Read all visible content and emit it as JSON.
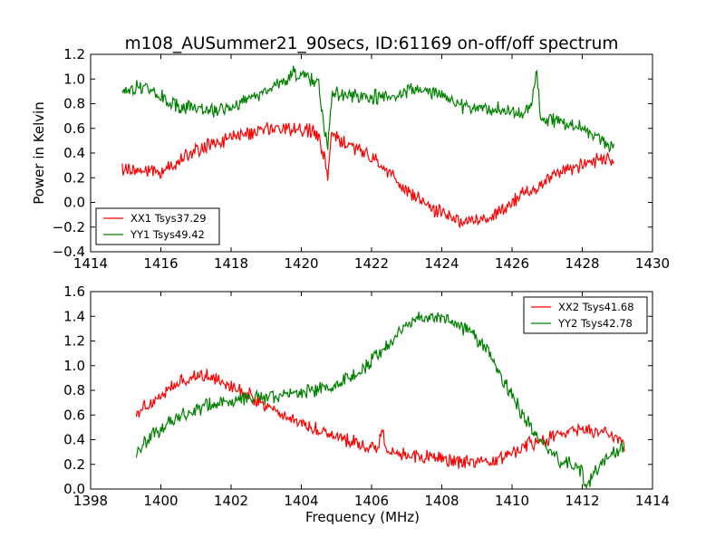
{
  "figure_title": "m108_AUSummer21_90secs, ID:61169 on-off/off spectrum",
  "chart_data": [
    {
      "type": "line",
      "title": "m108_AUSummer21_90secs, ID:61169 on-off/off spectrum",
      "xlabel": "",
      "ylabel": "Power in Kelvin",
      "xlim": [
        1414,
        1430
      ],
      "ylim": [
        -0.4,
        1.2
      ],
      "xticks": [
        1414,
        1416,
        1418,
        1420,
        1422,
        1424,
        1426,
        1428,
        1430
      ],
      "yticks": [
        -0.4,
        -0.2,
        0.0,
        0.2,
        0.4,
        0.6,
        0.8,
        1.0,
        1.2
      ],
      "xtick_labels": [
        "1414",
        "1416",
        "1418",
        "1420",
        "1422",
        "1424",
        "1426",
        "1428",
        "1430"
      ],
      "ytick_labels": [
        "−0.4",
        "−0.2",
        "0.0",
        "0.2",
        "0.4",
        "0.6",
        "0.8",
        "1.0",
        "1.2"
      ],
      "legend": "lower-left",
      "grid": false,
      "series": [
        {
          "name": "XX1 Tsys37.29",
          "color": "#ff0000",
          "x": [
            1414.9,
            1415.5,
            1416.0,
            1416.5,
            1417.0,
            1417.5,
            1418.0,
            1418.5,
            1419.0,
            1419.5,
            1420.0,
            1420.3,
            1420.5,
            1420.65,
            1420.75,
            1420.85,
            1421.0,
            1421.5,
            1422.0,
            1422.5,
            1423.0,
            1423.5,
            1424.0,
            1424.5,
            1425.0,
            1425.5,
            1426.0,
            1426.5,
            1427.0,
            1427.5,
            1428.0,
            1428.5,
            1428.9
          ],
          "y": [
            0.28,
            0.25,
            0.25,
            0.33,
            0.42,
            0.48,
            0.52,
            0.56,
            0.59,
            0.6,
            0.6,
            0.58,
            0.5,
            0.35,
            0.2,
            0.55,
            0.52,
            0.45,
            0.36,
            0.24,
            0.1,
            0.0,
            -0.1,
            -0.14,
            -0.14,
            -0.1,
            0.0,
            0.1,
            0.18,
            0.26,
            0.3,
            0.35,
            0.35
          ]
        },
        {
          "name": "YY1 Tsys49.42",
          "color": "#008000",
          "x": [
            1414.9,
            1415.5,
            1416.0,
            1416.5,
            1417.0,
            1417.5,
            1418.0,
            1418.5,
            1419.0,
            1419.5,
            1419.8,
            1420.2,
            1420.5,
            1420.65,
            1420.75,
            1420.85,
            1421.0,
            1421.5,
            1422.0,
            1422.5,
            1423.0,
            1423.5,
            1424.0,
            1424.5,
            1425.0,
            1425.5,
            1426.0,
            1426.5,
            1426.7,
            1426.8,
            1427.0,
            1427.5,
            1428.0,
            1428.5,
            1428.9
          ],
          "y": [
            0.9,
            0.95,
            0.85,
            0.78,
            0.75,
            0.74,
            0.78,
            0.85,
            0.9,
            0.98,
            1.06,
            1.0,
            0.95,
            0.6,
            0.45,
            0.85,
            0.88,
            0.87,
            0.86,
            0.86,
            0.9,
            0.92,
            0.87,
            0.78,
            0.76,
            0.76,
            0.73,
            0.74,
            1.06,
            0.72,
            0.68,
            0.64,
            0.6,
            0.52,
            0.45
          ]
        }
      ]
    },
    {
      "type": "line",
      "title": "",
      "xlabel": "Frequency (MHz)",
      "ylabel": "",
      "xlim": [
        1398,
        1414
      ],
      "ylim": [
        0.0,
        1.6
      ],
      "xticks": [
        1398,
        1400,
        1402,
        1404,
        1406,
        1408,
        1410,
        1412,
        1414
      ],
      "yticks": [
        0.0,
        0.2,
        0.4,
        0.6,
        0.8,
        1.0,
        1.2,
        1.4,
        1.6
      ],
      "xtick_labels": [
        "1398",
        "1400",
        "1402",
        "1404",
        "1406",
        "1408",
        "1410",
        "1412",
        "1414"
      ],
      "ytick_labels": [
        "0.0",
        "0.2",
        "0.4",
        "0.6",
        "0.8",
        "1.0",
        "1.2",
        "1.4",
        "1.6"
      ],
      "legend": "top-right",
      "grid": false,
      "series": [
        {
          "name": "XX2 Tsys41.68",
          "color": "#ff0000",
          "x": [
            1399.3,
            1399.8,
            1400.3,
            1400.8,
            1401.2,
            1401.6,
            1402.0,
            1402.5,
            1403.0,
            1403.5,
            1404.0,
            1404.5,
            1405.0,
            1405.5,
            1406.0,
            1406.2,
            1406.3,
            1406.4,
            1406.5,
            1407.0,
            1407.5,
            1408.0,
            1408.5,
            1409.0,
            1409.5,
            1410.0,
            1410.5,
            1411.0,
            1411.5,
            1412.0,
            1412.5,
            1413.0,
            1413.2
          ],
          "y": [
            0.62,
            0.72,
            0.82,
            0.9,
            0.93,
            0.9,
            0.84,
            0.76,
            0.68,
            0.6,
            0.53,
            0.48,
            0.43,
            0.38,
            0.34,
            0.33,
            0.55,
            0.32,
            0.3,
            0.28,
            0.26,
            0.24,
            0.22,
            0.2,
            0.22,
            0.3,
            0.36,
            0.4,
            0.46,
            0.48,
            0.46,
            0.42,
            0.35
          ]
        },
        {
          "name": "YY2 Tsys42.78",
          "color": "#008000",
          "x": [
            1399.3,
            1399.8,
            1400.3,
            1400.8,
            1401.3,
            1401.8,
            1402.3,
            1402.8,
            1403.3,
            1403.8,
            1404.3,
            1404.8,
            1405.3,
            1405.8,
            1406.3,
            1406.8,
            1407.3,
            1407.8,
            1408.3,
            1408.8,
            1409.3,
            1409.8,
            1410.3,
            1410.8,
            1411.3,
            1411.8,
            1412.0,
            1412.1,
            1412.5,
            1413.0,
            1413.2
          ],
          "y": [
            0.32,
            0.45,
            0.55,
            0.62,
            0.68,
            0.7,
            0.72,
            0.74,
            0.76,
            0.78,
            0.8,
            0.82,
            0.88,
            0.98,
            1.12,
            1.28,
            1.38,
            1.4,
            1.36,
            1.28,
            1.12,
            0.85,
            0.6,
            0.4,
            0.25,
            0.18,
            0.16,
            0.0,
            0.2,
            0.3,
            0.38
          ]
        }
      ]
    }
  ]
}
